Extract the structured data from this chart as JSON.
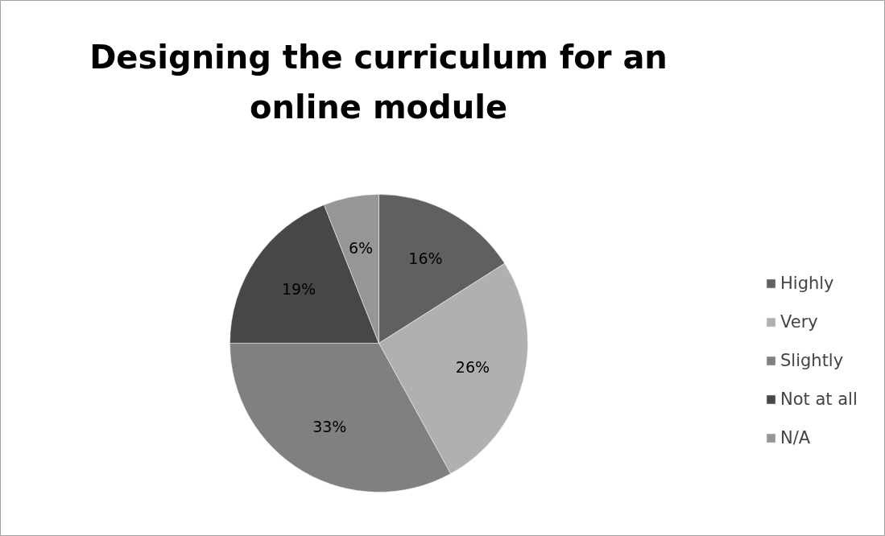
{
  "chart_data": {
    "type": "pie",
    "title": "Designing the curriculum for an\nonline module",
    "categories": [
      "Highly",
      "Very",
      "Slightly",
      "Not at all",
      "N/A"
    ],
    "values": [
      16,
      26,
      33,
      19,
      6
    ],
    "colors": [
      "#606060",
      "#b0b0b0",
      "#808080",
      "#474747",
      "#969696"
    ],
    "value_labels": [
      "16%",
      "26%",
      "33%",
      "19%",
      "6%"
    ],
    "legend": "right"
  }
}
